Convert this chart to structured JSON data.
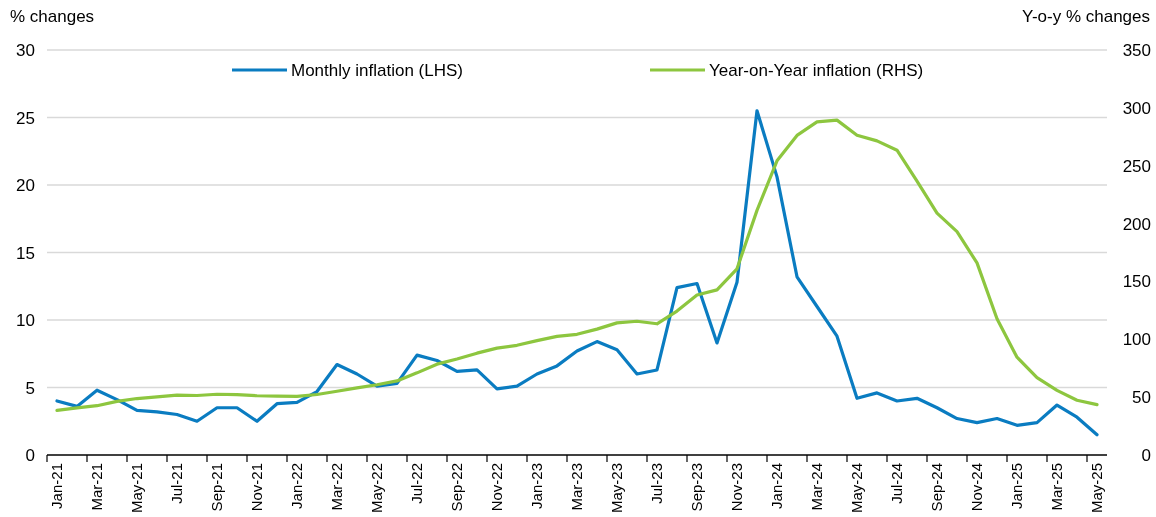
{
  "chart_data": {
    "type": "line",
    "ylabel": "% changes",
    "y2label": "Y-o-y % changes",
    "categories": [
      "Jan-21",
      null,
      "Mar-21",
      null,
      "May-21",
      null,
      "Jul-21",
      null,
      "Sep-21",
      null,
      "Nov-21",
      null,
      "Jan-22",
      null,
      "Mar-22",
      null,
      "May-22",
      null,
      "Jul-22",
      null,
      "Sep-22",
      null,
      "Nov-22",
      null,
      "Jan-23",
      null,
      "Mar-23",
      null,
      "May-23",
      null,
      "Jul-23",
      null,
      "Sep-23",
      null,
      "Nov-23",
      null,
      "Jan-24",
      null,
      "Mar-24",
      null,
      "May-24",
      null,
      "Jul-24",
      null,
      "Sep-24",
      null,
      "Nov-24",
      null,
      "Jan-25",
      null,
      "Mar-25",
      null,
      "May-25"
    ],
    "series": [
      {
        "name": "Monthly inflation (LHS)",
        "color": "#0a7cc1",
        "values": [
          4.0,
          3.6,
          4.8,
          4.1,
          3.3,
          3.2,
          3.0,
          2.5,
          3.5,
          3.5,
          2.5,
          3.8,
          3.9,
          4.7,
          6.7,
          6.0,
          5.1,
          5.3,
          7.4,
          7.0,
          6.2,
          6.3,
          4.9,
          5.1,
          6.0,
          6.6,
          7.7,
          8.4,
          7.8,
          6.0,
          6.3,
          12.4,
          12.7,
          8.3,
          12.8,
          25.5,
          20.6,
          13.2,
          11.0,
          8.8,
          4.2,
          4.6,
          4.0,
          4.2,
          3.5,
          2.7,
          2.4,
          2.7,
          2.2,
          2.4,
          3.7,
          2.8,
          1.5
        ]
      },
      {
        "name": "Year-on-Year inflation (RHS)",
        "color": "#8dc63f",
        "axis": "y2",
        "values": [
          38.5,
          40.7,
          42.6,
          46.3,
          48.8,
          50.2,
          51.8,
          51.4,
          52.5,
          52.1,
          51.2,
          50.9,
          50.7,
          52.3,
          55.1,
          58.0,
          60.7,
          64.0,
          71.0,
          78.5,
          83.0,
          88.0,
          92.4,
          94.8,
          98.8,
          102.5,
          104.3,
          108.8,
          114.2,
          115.6,
          113.4,
          124.4,
          138.3,
          142.7,
          160.9,
          211.4,
          254.2,
          276.2,
          287.9,
          289.4,
          276.4,
          271.5,
          263.4,
          236.7,
          209.0,
          193.0,
          166.0,
          117.8,
          84.5,
          66.9,
          55.9,
          47.3,
          43.5
        ]
      }
    ],
    "ylim": [
      0,
      30
    ],
    "yticks": [
      0,
      5,
      10,
      15,
      20,
      25,
      30
    ],
    "y2lim": [
      0,
      350
    ],
    "y2ticks": [
      0,
      50,
      100,
      150,
      200,
      250,
      300,
      350
    ],
    "grid": "y",
    "legend": "top",
    "marker": "none",
    "line_style": "solid"
  }
}
